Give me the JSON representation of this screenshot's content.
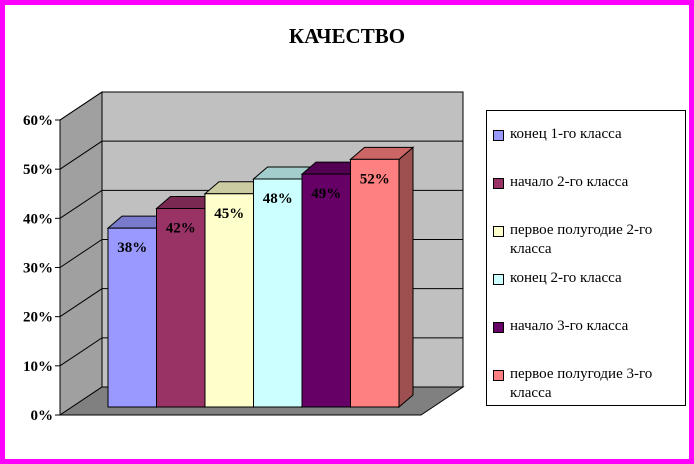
{
  "chart_data": {
    "type": "bar",
    "title": "КАЧЕСТВО",
    "categories": [
      "конец 1-го класса",
      "начало 2-го класса",
      "первое полугодие 2-го класса",
      "конец 2-го класса",
      "начало 3-го класса",
      "первое полугодие 3-го класса"
    ],
    "values": [
      38,
      42,
      45,
      48,
      49,
      52
    ],
    "data_labels": [
      "38%",
      "42%",
      "45%",
      "48%",
      "49%",
      "52%"
    ],
    "colors": [
      "#9999ff",
      "#993366",
      "#ffffcc",
      "#ccffff",
      "#660066",
      "#ff8080"
    ],
    "yticks": [
      "0%",
      "10%",
      "20%",
      "30%",
      "40%",
      "50%",
      "60%"
    ],
    "ylim": [
      0,
      60
    ],
    "grid": true,
    "three_d": true,
    "legend_position": "right"
  },
  "frame_color": "#ff00ff"
}
